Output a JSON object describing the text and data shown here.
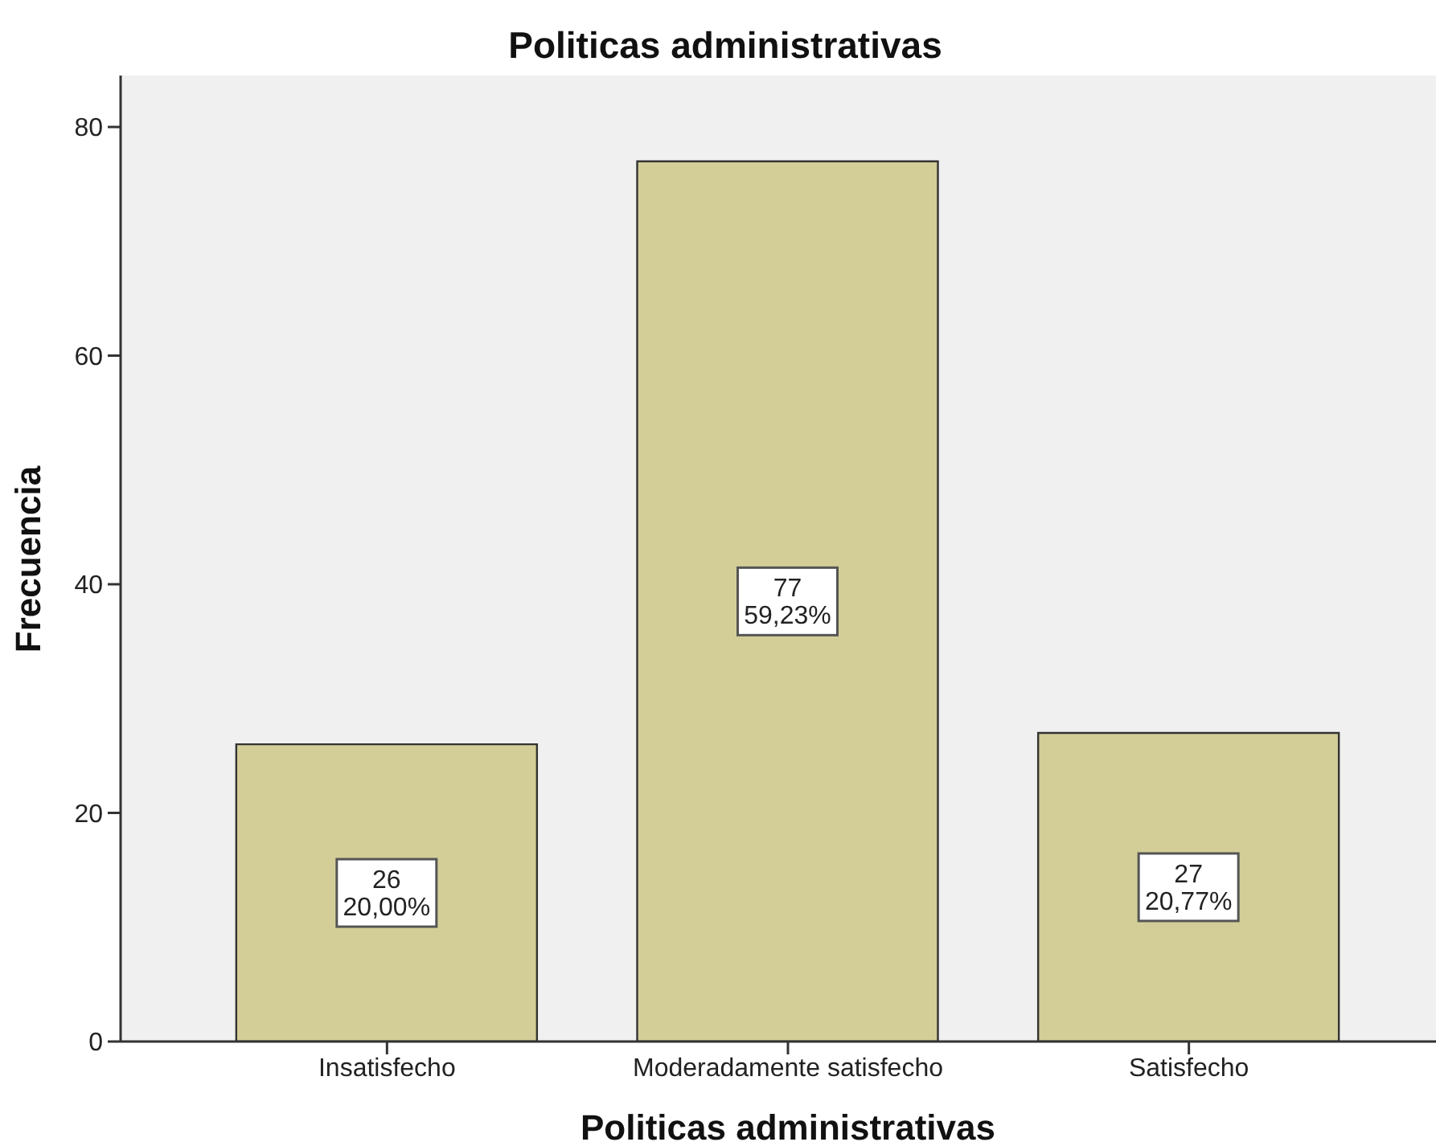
{
  "chart_data": {
    "type": "bar",
    "title": "Politicas administrativas",
    "xlabel": "Politicas administrativas",
    "ylabel": "Frecuencia",
    "categories": [
      "Insatisfecho",
      "Moderadamente satisfecho",
      "Satisfecho"
    ],
    "values": [
      26,
      77,
      27
    ],
    "value_labels": [
      "26\n20,00%",
      "77\n59,23%",
      "27\n20,77%"
    ],
    "color": "#d3ce98",
    "ylim": [
      0,
      84.5
    ],
    "yticks": [
      0,
      20,
      40,
      60,
      80
    ],
    "grid": false
  }
}
